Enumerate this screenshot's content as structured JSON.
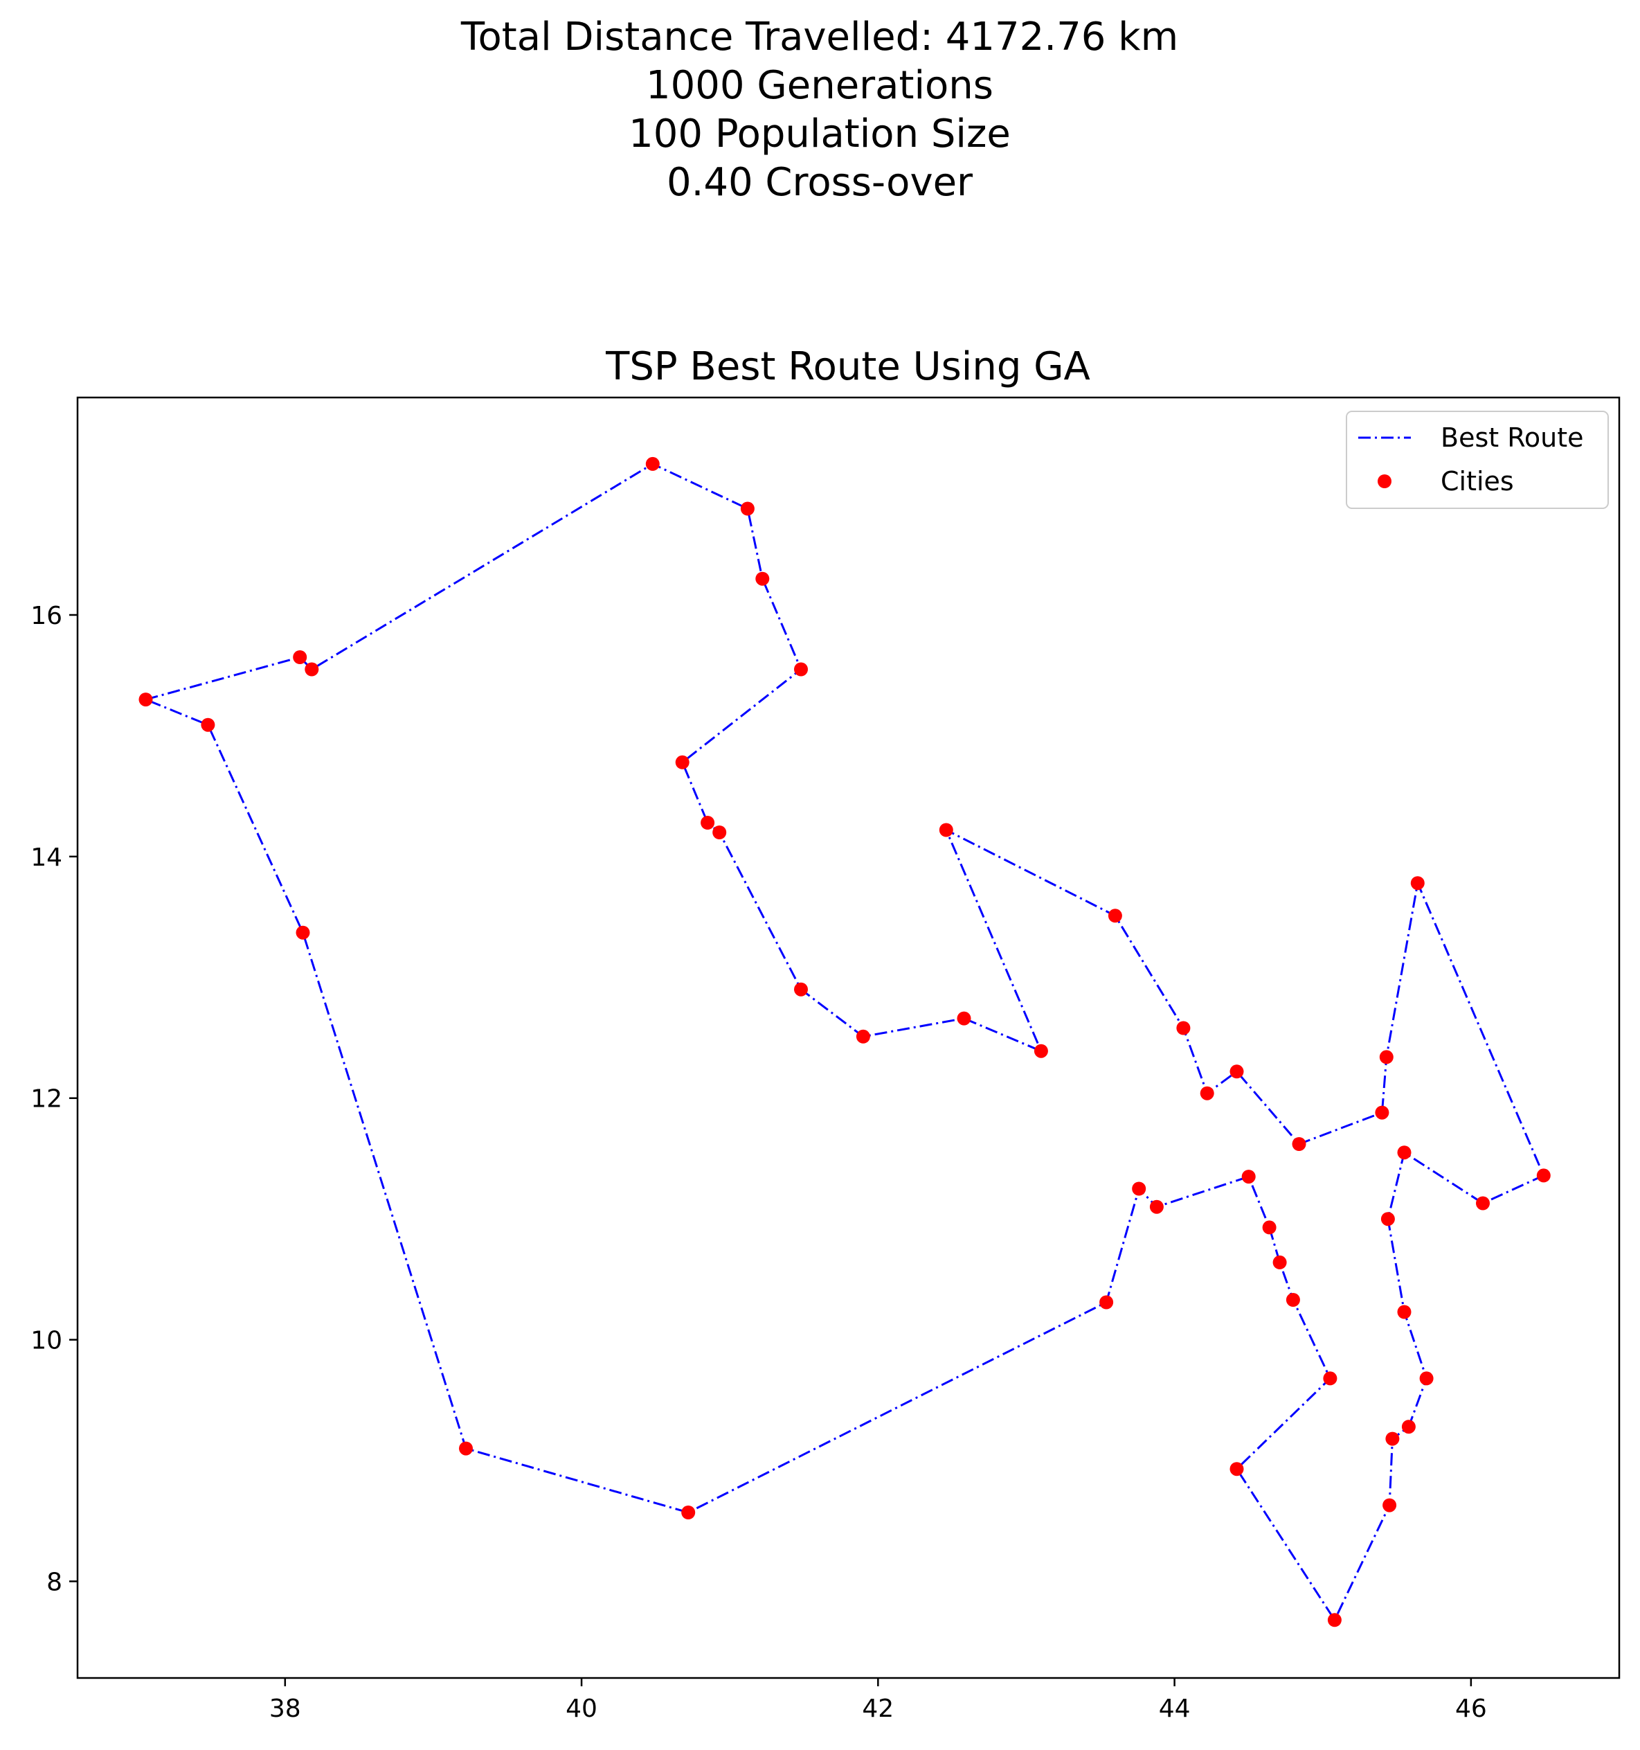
{
  "suptitle": {
    "lines": [
      "Total Distance Travelled: 4172.76 km",
      "1000 Generations",
      "100 Population Size",
      "0.40 Cross-over"
    ]
  },
  "colors": {
    "route": "#0000ff",
    "cities": "#ff0000",
    "axes": "#000000",
    "background": "#ffffff"
  },
  "chart_data": {
    "type": "line",
    "title": "TSP Best Route Using GA",
    "xlabel": "",
    "ylabel": "",
    "xlim": [
      36.6,
      47.0
    ],
    "ylim": [
      7.2,
      17.8
    ],
    "xticks": [
      38,
      40,
      42,
      44,
      46
    ],
    "yticks": [
      8,
      10,
      12,
      14,
      16
    ],
    "grid": false,
    "legend": {
      "placement": "top-right",
      "entries": [
        "Best Route",
        "Cities"
      ]
    },
    "series": [
      {
        "name": "Best Route",
        "style": "dash-dot",
        "points": [
          [
            37.06,
            15.3
          ],
          [
            38.1,
            15.65
          ],
          [
            38.18,
            15.55
          ],
          [
            40.48,
            17.25
          ],
          [
            41.12,
            16.88
          ],
          [
            41.22,
            16.3
          ],
          [
            41.48,
            15.55
          ],
          [
            40.68,
            14.78
          ],
          [
            40.85,
            14.28
          ],
          [
            40.93,
            14.2
          ],
          [
            41.48,
            12.9
          ],
          [
            41.9,
            12.51
          ],
          [
            42.58,
            12.66
          ],
          [
            43.1,
            12.39
          ],
          [
            42.46,
            14.22
          ],
          [
            43.6,
            13.51
          ],
          [
            44.06,
            12.58
          ],
          [
            44.22,
            12.04
          ],
          [
            44.42,
            12.22
          ],
          [
            44.84,
            11.62
          ],
          [
            45.4,
            11.88
          ],
          [
            45.43,
            12.34
          ],
          [
            45.64,
            13.78
          ],
          [
            46.49,
            11.36
          ],
          [
            46.08,
            11.13
          ],
          [
            45.55,
            11.55
          ],
          [
            45.44,
            11.0
          ],
          [
            45.55,
            10.23
          ],
          [
            45.7,
            9.68
          ],
          [
            45.58,
            9.28
          ],
          [
            45.47,
            9.18
          ],
          [
            45.45,
            8.63
          ],
          [
            45.08,
            7.68
          ],
          [
            44.42,
            8.93
          ],
          [
            45.05,
            9.68
          ],
          [
            44.8,
            10.33
          ],
          [
            44.71,
            10.64
          ],
          [
            44.64,
            10.93
          ],
          [
            44.5,
            11.35
          ],
          [
            43.88,
            11.1
          ],
          [
            43.76,
            11.25
          ],
          [
            43.54,
            10.31
          ],
          [
            40.72,
            8.57
          ],
          [
            39.22,
            9.1
          ],
          [
            38.12,
            13.37
          ],
          [
            37.48,
            15.09
          ],
          [
            37.06,
            15.3
          ]
        ]
      },
      {
        "name": "Cities",
        "style": "scatter",
        "points": [
          [
            37.06,
            15.3
          ],
          [
            38.1,
            15.65
          ],
          [
            38.18,
            15.55
          ],
          [
            40.48,
            17.25
          ],
          [
            41.12,
            16.88
          ],
          [
            41.22,
            16.3
          ],
          [
            41.48,
            15.55
          ],
          [
            40.68,
            14.78
          ],
          [
            40.85,
            14.28
          ],
          [
            40.93,
            14.2
          ],
          [
            41.48,
            12.9
          ],
          [
            41.9,
            12.51
          ],
          [
            42.58,
            12.66
          ],
          [
            43.1,
            12.39
          ],
          [
            42.46,
            14.22
          ],
          [
            43.6,
            13.51
          ],
          [
            44.06,
            12.58
          ],
          [
            44.22,
            12.04
          ],
          [
            44.42,
            12.22
          ],
          [
            44.84,
            11.62
          ],
          [
            45.4,
            11.88
          ],
          [
            45.43,
            12.34
          ],
          [
            45.64,
            13.78
          ],
          [
            46.49,
            11.36
          ],
          [
            46.08,
            11.13
          ],
          [
            45.55,
            11.55
          ],
          [
            45.44,
            11.0
          ],
          [
            45.55,
            10.23
          ],
          [
            45.7,
            9.68
          ],
          [
            45.58,
            9.28
          ],
          [
            45.47,
            9.18
          ],
          [
            45.45,
            8.63
          ],
          [
            45.08,
            7.68
          ],
          [
            44.42,
            8.93
          ],
          [
            45.05,
            9.68
          ],
          [
            44.8,
            10.33
          ],
          [
            44.71,
            10.64
          ],
          [
            44.64,
            10.93
          ],
          [
            44.5,
            11.35
          ],
          [
            43.88,
            11.1
          ],
          [
            43.76,
            11.25
          ],
          [
            43.54,
            10.31
          ],
          [
            40.72,
            8.57
          ],
          [
            39.22,
            9.1
          ],
          [
            38.12,
            13.37
          ],
          [
            37.48,
            15.09
          ]
        ]
      }
    ]
  }
}
